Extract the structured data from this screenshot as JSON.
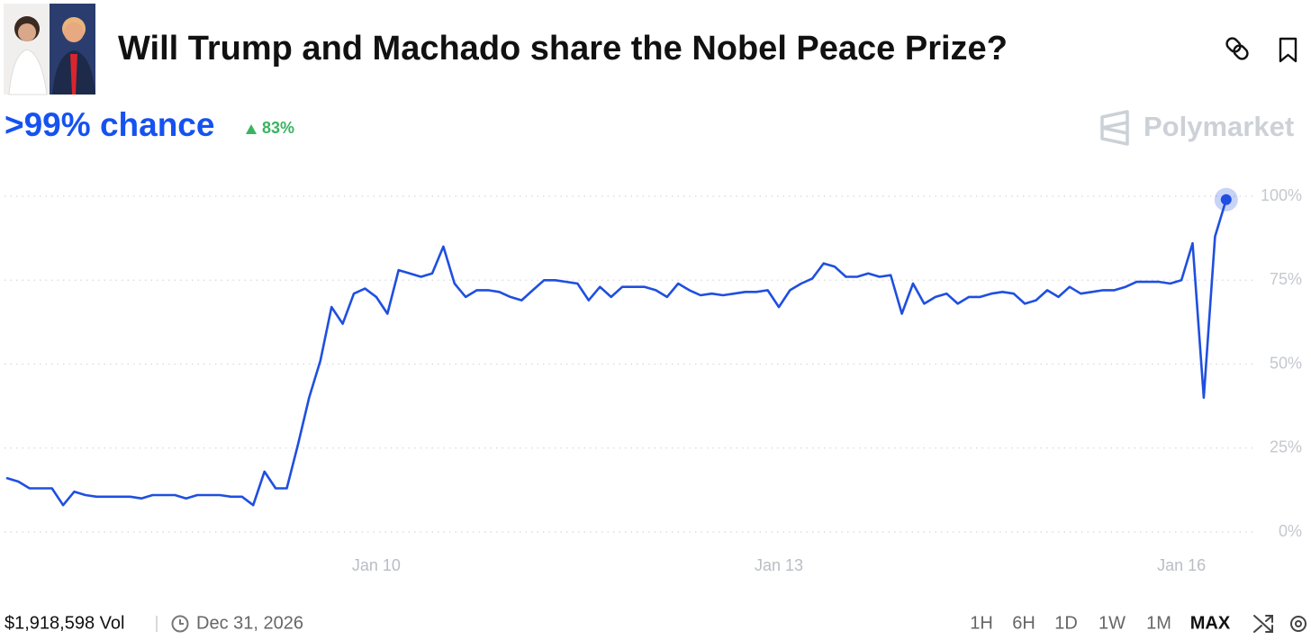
{
  "header": {
    "title": "Will Trump and Machado share the Nobel Peace Prize?"
  },
  "summary": {
    "chance": ">99% chance",
    "change": "83%",
    "brand": "Polymarket"
  },
  "footer": {
    "volume": "$1,918,598 Vol",
    "end_date": "Dec 31, 2026",
    "ranges": [
      "1H",
      "6H",
      "1D",
      "1W",
      "1M",
      "MAX"
    ]
  },
  "chart_data": {
    "type": "line",
    "color": "#1f4fe0",
    "grid": true,
    "categories": [
      null,
      null,
      null,
      null,
      null,
      null,
      null,
      null,
      null,
      null,
      null,
      null,
      null,
      null,
      null,
      null,
      null,
      null,
      null,
      null,
      null,
      null,
      null,
      null,
      null,
      null,
      null,
      null,
      null,
      null,
      null,
      null,
      null,
      "Jan 10",
      null,
      null,
      null,
      null,
      null,
      null,
      null,
      null,
      null,
      null,
      null,
      null,
      null,
      null,
      null,
      null,
      null,
      null,
      null,
      null,
      null,
      null,
      null,
      null,
      null,
      null,
      null,
      null,
      null,
      null,
      null,
      null,
      null,
      null,
      null,
      "Jan 13",
      null,
      null,
      null,
      null,
      null,
      null,
      null,
      null,
      null,
      null,
      null,
      null,
      null,
      null,
      null,
      null,
      null,
      null,
      null,
      null,
      null,
      null,
      null,
      null,
      null,
      null,
      null,
      null,
      null,
      null,
      null,
      null,
      null,
      null,
      null,
      "Jan 16",
      null,
      null,
      null,
      null
    ],
    "values": [
      16,
      15,
      13,
      13,
      13,
      8,
      12,
      11,
      10.5,
      10.5,
      10.5,
      10.5,
      10,
      11,
      11,
      11,
      10,
      11,
      11,
      11,
      10.5,
      10.5,
      8,
      18,
      13,
      13,
      26,
      40,
      51,
      67,
      62,
      71,
      72.5,
      70,
      65,
      78,
      77,
      76,
      77,
      85,
      74,
      70,
      72,
      72,
      71.5,
      70,
      69,
      72,
      75,
      75,
      74.5,
      74,
      69,
      73,
      70,
      73,
      73,
      73,
      72,
      70,
      74,
      72,
      70.5,
      71,
      70.5,
      71,
      71.5,
      71.5,
      72,
      67,
      72,
      74,
      75.5,
      80,
      79,
      76,
      76,
      77,
      76,
      76.5,
      65,
      74,
      68,
      70,
      71,
      68,
      70,
      70,
      71,
      71.5,
      71,
      68,
      69,
      72,
      70,
      73,
      71,
      71.5,
      72,
      72,
      73,
      74.5,
      74.5,
      74.5,
      74,
      75,
      86,
      40,
      88,
      99
    ],
    "ylim": [
      0,
      100
    ],
    "yticks": [
      {
        "value": 0,
        "label": "0%"
      },
      {
        "value": 25,
        "label": "25%"
      },
      {
        "value": 50,
        "label": "50%"
      },
      {
        "value": 75,
        "label": "75%"
      },
      {
        "value": 100,
        "label": "100%"
      }
    ]
  }
}
